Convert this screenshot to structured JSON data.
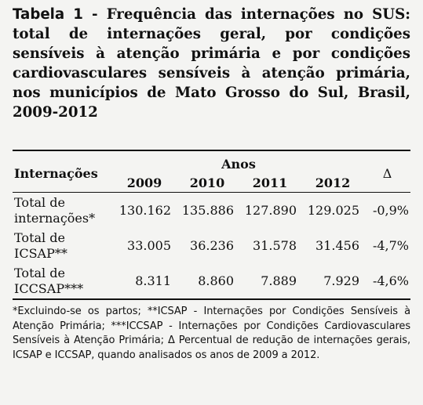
{
  "caption": {
    "label": "Tabela 1",
    "text": " - Frequência das internações no SUS: total de internações geral, por condições sensíveis à atenção primária e por condições cardiovasculares sensíveis à atenção primária, nos municípios de Mato Grosso do Sul, Brasil, 2009-2012"
  },
  "table": {
    "row_header": "Internações",
    "group_header": "Anos",
    "years": [
      "2009",
      "2010",
      "2011",
      "2012"
    ],
    "delta_header": "Δ",
    "rows": [
      {
        "label_line1": "Total de",
        "label_line2": "internações*",
        "values": [
          "130.162",
          "135.886",
          "127.890",
          "129.025"
        ],
        "delta": "-0,9%"
      },
      {
        "label_line1": "Total de",
        "label_line2": "ICSAP**",
        "values": [
          "33.005",
          "36.236",
          "31.578",
          "31.456"
        ],
        "delta": "-4,7%"
      },
      {
        "label_line1": "Total de",
        "label_line2": "ICCSAP***",
        "values": [
          "8.311",
          "8.860",
          "7.889",
          "7.929"
        ],
        "delta": "-4,6%"
      }
    ]
  },
  "footnote": "*Excluindo-se os partos; **ICSAP - Internações por Condições Sensíveis à Atenção Primária; ***ICCSAP - Internações por Condições Cardiovasculares Sensíveis à Atenção Primária; Δ Percentual de redução de internações gerais, ICSAP e ICCSAP, quando analisados os anos de 2009 a 2012."
}
